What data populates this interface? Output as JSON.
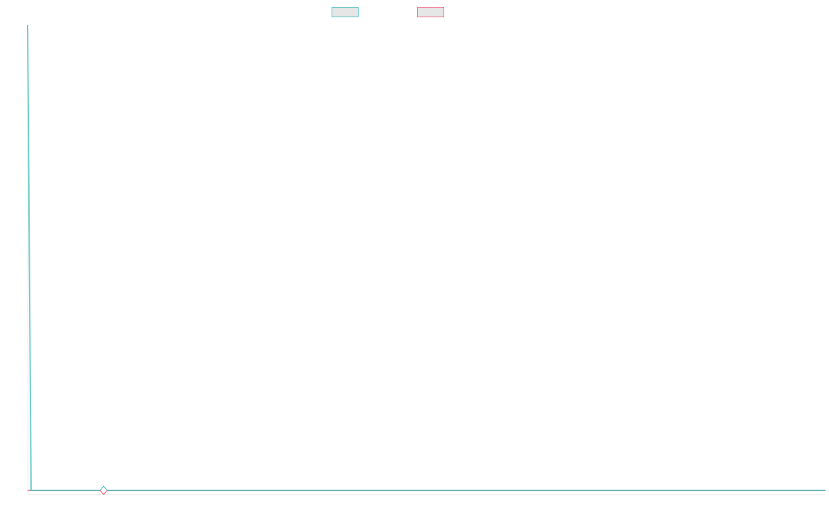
{
  "chart_data": {
    "type": "line",
    "title": "",
    "xlabel": "",
    "ylabel": "",
    "legend_position": "top",
    "grid": false,
    "xlim": [
      0,
      231
    ],
    "ylim": [
      0,
      100
    ],
    "series": [
      {
        "color": "#4bc0c0",
        "points": [
          [
            0,
            100
          ],
          [
            1,
            0
          ],
          [
            231,
            0
          ]
        ]
      },
      {
        "color": "#ff6384",
        "points": [
          [
            0,
            0
          ],
          [
            1,
            0
          ],
          [
            231,
            0
          ]
        ]
      }
    ],
    "highlighted_point": {
      "x": 22,
      "y": 0
    }
  }
}
